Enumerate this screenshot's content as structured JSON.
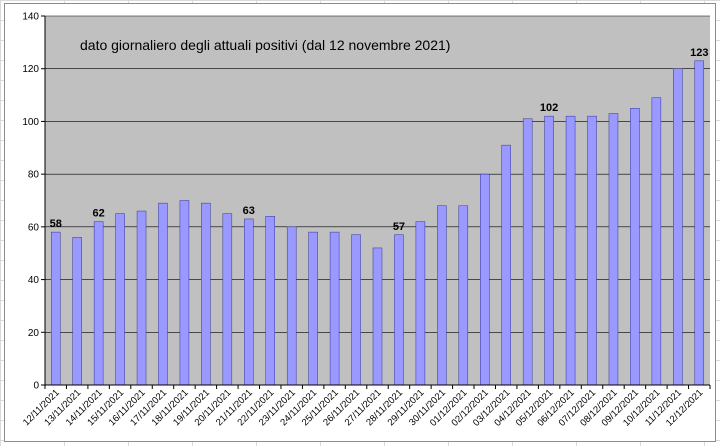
{
  "chart_data": {
    "type": "bar",
    "title": "dato giornaliero degli attuali positivi (dal 12 novembre 2021)",
    "xlabel": "",
    "ylabel": "",
    "ylim": [
      0,
      140
    ],
    "yticks": [
      0,
      20,
      40,
      60,
      80,
      100,
      120,
      140
    ],
    "grid": true,
    "legend": "none",
    "colors": {
      "bar": "#9999ff",
      "bar_edge": "#33339a",
      "plot_bg": "#c0c0c0",
      "grid": "#000000"
    },
    "categories": [
      "12/11/2021",
      "13/11/2021",
      "14/11/2021",
      "15/11/2021",
      "16/11/2021",
      "17/11/2021",
      "18/11/2021",
      "19/11/2021",
      "20/11/2021",
      "21/11/2021",
      "22/11/2021",
      "23/11/2021",
      "24/11/2021",
      "25/11/2021",
      "26/11/2021",
      "27/11/2021",
      "28/11/2021",
      "29/11/2021",
      "30/11/2021",
      "01/12/2021",
      "02/12/2021",
      "03/12/2021",
      "04/12/2021",
      "05/12/2021",
      "06/12/2021",
      "07/12/2021",
      "08/12/2021",
      "09/12/2021",
      "10/12/2021",
      "11/12/2021",
      "12/12/2021"
    ],
    "values": [
      58,
      56,
      62,
      65,
      66,
      69,
      70,
      69,
      65,
      63,
      64,
      60,
      58,
      58,
      57,
      52,
      57,
      62,
      68,
      68,
      80,
      91,
      101,
      102,
      102,
      102,
      103,
      105,
      109,
      120,
      123
    ],
    "data_labels": [
      {
        "category": "12/11/2021",
        "text": "58"
      },
      {
        "category": "14/11/2021",
        "text": "62"
      },
      {
        "category": "21/11/2021",
        "text": "63"
      },
      {
        "category": "28/11/2021",
        "text": "57"
      },
      {
        "category": "05/12/2021",
        "text": "102"
      },
      {
        "category": "12/12/2021",
        "text": "123"
      }
    ]
  }
}
